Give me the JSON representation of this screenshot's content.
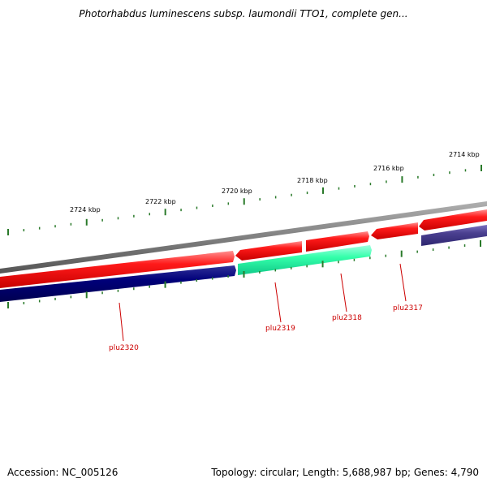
{
  "title": "Photorhabdus luminescens subsp. laumondii TTO1, complete gen...",
  "footer": {
    "accession": "Accession: NC_005126",
    "summary": "Topology: circular; Length: 5,688,987 bp; Genes: 4,790"
  },
  "scale": {
    "unit": "kbp",
    "labels": [
      {
        "kbp": 2724,
        "text": "2724 kbp"
      },
      {
        "kbp": 2722,
        "text": "2722 kbp"
      },
      {
        "kbp": 2720,
        "text": "2720 kbp"
      },
      {
        "kbp": 2718,
        "text": "2718 kbp"
      },
      {
        "kbp": 2716,
        "text": "2716 kbp"
      },
      {
        "kbp": 2714,
        "text": "2714 kbp"
      }
    ]
  },
  "genes": [
    {
      "name": "plu2320",
      "strand": "-",
      "color": "#000080"
    },
    {
      "name": "plu2319",
      "strand": "-",
      "color": "#33ffaa"
    },
    {
      "name": "plu2318",
      "strand": "+",
      "color": "#ff0000"
    },
    {
      "name": "plu2317",
      "strand": "+",
      "color": "#ff0000"
    }
  ],
  "colors": {
    "backbone": "#808080",
    "forward_feature": "#ff0000",
    "reverse_feature_dark": "#000080",
    "reverse_feature_light": "#40f0b0",
    "reverse_feature_muted": "#4a3f8f",
    "tick": "#2a7a2a",
    "gene_label": "#cc0000"
  }
}
